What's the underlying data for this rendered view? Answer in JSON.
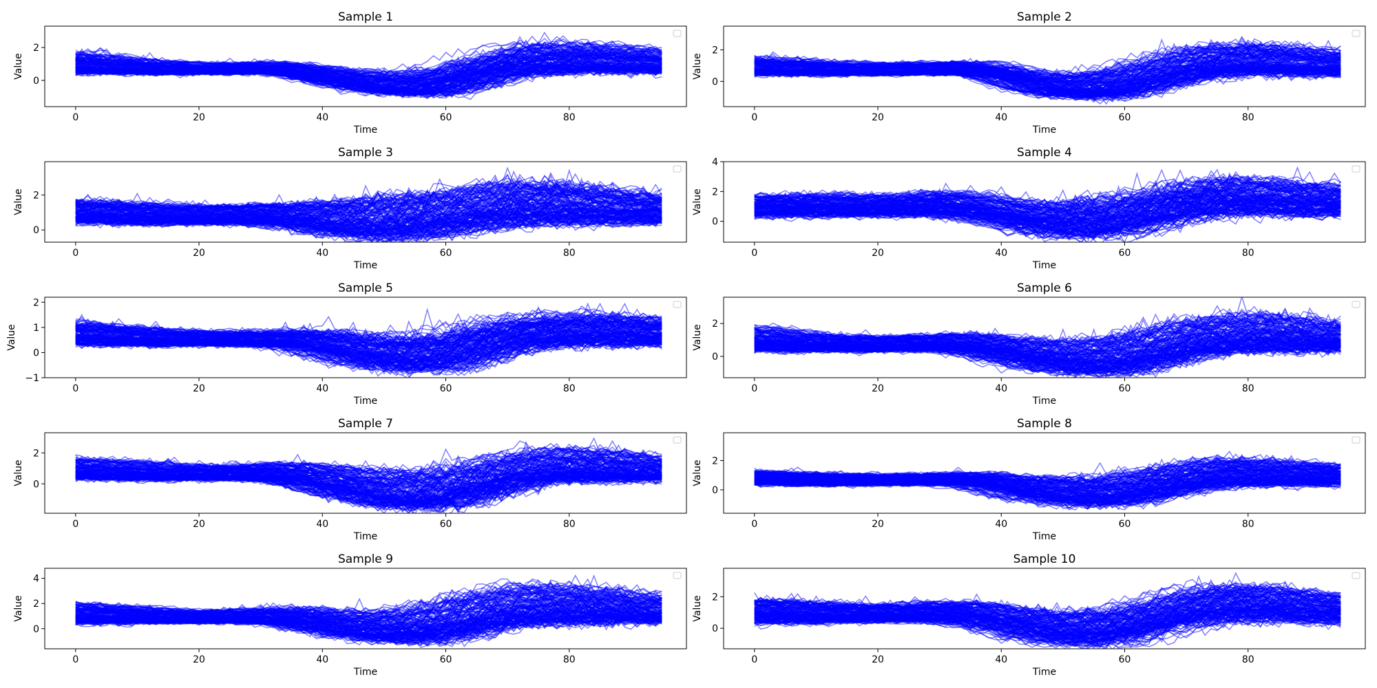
{
  "chart_data": [
    {
      "type": "line",
      "title": "Sample 1",
      "xlabel": "Time",
      "ylabel": "Value",
      "xlim": [
        -5,
        99
      ],
      "ylim": [
        -1.6,
        3.3
      ],
      "xticks": [
        0,
        20,
        40,
        60,
        80
      ],
      "yticks": [
        0,
        2
      ],
      "legend": "top-right",
      "grid": false,
      "series_color": "#0000ff",
      "approx_series_count": 150,
      "x_points": 96,
      "profile": {
        "x": [
          0,
          10,
          20,
          30,
          35,
          40,
          45,
          50,
          55,
          60,
          65,
          70,
          75,
          80,
          85,
          90,
          95
        ],
        "low": [
          0.5,
          0.4,
          0.4,
          0.45,
          0.3,
          -0.1,
          -0.5,
          -0.8,
          -0.9,
          -0.7,
          -0.2,
          0.3,
          0.5,
          0.55,
          0.55,
          0.55,
          0.5
        ],
        "high": [
          2.0,
          1.5,
          1.2,
          1.3,
          1.2,
          1.0,
          0.9,
          0.8,
          1.0,
          1.4,
          2.0,
          2.6,
          2.8,
          2.7,
          2.6,
          2.4,
          2.1
        ]
      }
    },
    {
      "type": "line",
      "title": "Sample 2",
      "xlabel": "Time",
      "ylabel": "Value",
      "xlim": [
        -5,
        99
      ],
      "ylim": [
        -1.6,
        3.5
      ],
      "xticks": [
        0,
        20,
        40,
        60,
        80
      ],
      "yticks": [
        0,
        2
      ],
      "legend": "top-right",
      "grid": false,
      "series_color": "#0000ff",
      "approx_series_count": 150,
      "x_points": 96,
      "profile": {
        "x": [
          0,
          10,
          20,
          30,
          35,
          40,
          45,
          50,
          55,
          60,
          65,
          70,
          75,
          80,
          85,
          90,
          95
        ],
        "low": [
          0.5,
          0.45,
          0.45,
          0.5,
          0.5,
          0.1,
          -0.6,
          -0.9,
          -1.0,
          -0.8,
          -0.3,
          0.2,
          0.5,
          0.6,
          0.55,
          0.5,
          0.5
        ],
        "high": [
          1.8,
          1.5,
          1.3,
          1.4,
          1.5,
          1.2,
          0.9,
          0.8,
          1.0,
          1.4,
          2.0,
          2.5,
          2.8,
          2.9,
          2.7,
          2.5,
          2.2
        ]
      }
    },
    {
      "type": "line",
      "title": "Sample 3",
      "xlabel": "Time",
      "ylabel": "Value",
      "xlim": [
        -5,
        99
      ],
      "ylim": [
        -0.7,
        3.9
      ],
      "xticks": [
        0,
        20,
        40,
        60,
        80
      ],
      "yticks": [
        0,
        2
      ],
      "legend": "top-right",
      "grid": false,
      "series_color": "#0000ff",
      "approx_series_count": 150,
      "x_points": 96,
      "profile": {
        "x": [
          0,
          10,
          20,
          30,
          35,
          40,
          45,
          50,
          55,
          60,
          65,
          70,
          75,
          80,
          85,
          90,
          95
        ],
        "low": [
          0.5,
          0.4,
          0.4,
          0.4,
          0.2,
          -0.1,
          -0.3,
          -0.4,
          -0.3,
          -0.1,
          0.2,
          0.4,
          0.5,
          0.5,
          0.5,
          0.5,
          0.5
        ],
        "high": [
          2.0,
          1.8,
          1.6,
          1.7,
          1.8,
          2.0,
          2.2,
          2.4,
          2.5,
          2.7,
          3.0,
          3.3,
          3.3,
          3.1,
          2.8,
          2.6,
          2.3
        ]
      }
    },
    {
      "type": "line",
      "title": "Sample 4",
      "xlabel": "Time",
      "ylabel": "Value",
      "xlim": [
        -5,
        99
      ],
      "ylim": [
        -1.4,
        4.0
      ],
      "xticks": [
        0,
        20,
        40,
        60,
        80
      ],
      "yticks": [
        0,
        2,
        4
      ],
      "legend": "top-right",
      "grid": false,
      "series_color": "#0000ff",
      "approx_series_count": 150,
      "x_points": 96,
      "profile": {
        "x": [
          0,
          10,
          20,
          30,
          35,
          40,
          45,
          50,
          55,
          60,
          65,
          70,
          75,
          80,
          85,
          90,
          95
        ],
        "low": [
          0.4,
          0.4,
          0.4,
          0.45,
          0.3,
          -0.1,
          -0.6,
          -0.9,
          -1.0,
          -0.8,
          -0.3,
          0.2,
          0.5,
          0.6,
          0.55,
          0.5,
          0.45
        ],
        "high": [
          2.0,
          2.2,
          2.0,
          2.4,
          2.2,
          1.8,
          1.6,
          1.8,
          2.2,
          2.4,
          2.8,
          3.2,
          3.5,
          3.4,
          3.2,
          3.0,
          2.8
        ]
      }
    },
    {
      "type": "line",
      "title": "Sample 5",
      "xlabel": "Time",
      "ylabel": "Value",
      "xlim": [
        -5,
        99
      ],
      "ylim": [
        -1.0,
        2.2
      ],
      "xticks": [
        0,
        20,
        40,
        60,
        80
      ],
      "yticks": [
        -1,
        0,
        1,
        2
      ],
      "legend": "top-right",
      "grid": false,
      "series_color": "#0000ff",
      "approx_series_count": 150,
      "x_points": 96,
      "profile": {
        "x": [
          0,
          10,
          20,
          30,
          35,
          40,
          45,
          50,
          55,
          60,
          65,
          70,
          75,
          80,
          85,
          90,
          95
        ],
        "low": [
          0.35,
          0.3,
          0.3,
          0.3,
          0.2,
          -0.1,
          -0.4,
          -0.6,
          -0.7,
          -0.6,
          -0.3,
          0.1,
          0.3,
          0.35,
          0.35,
          0.35,
          0.35
        ],
        "high": [
          1.5,
          1.2,
          1.0,
          1.0,
          1.1,
          1.2,
          1.1,
          1.0,
          1.1,
          1.3,
          1.5,
          1.7,
          1.8,
          1.9,
          1.9,
          1.8,
          1.6
        ]
      }
    },
    {
      "type": "line",
      "title": "Sample 6",
      "xlabel": "Time",
      "ylabel": "Value",
      "xlim": [
        -5,
        99
      ],
      "ylim": [
        -1.3,
        3.6
      ],
      "xticks": [
        0,
        20,
        40,
        60,
        80
      ],
      "yticks": [
        0,
        2
      ],
      "legend": "top-right",
      "grid": false,
      "series_color": "#0000ff",
      "approx_series_count": 150,
      "x_points": 96,
      "profile": {
        "x": [
          0,
          10,
          20,
          30,
          35,
          40,
          45,
          50,
          55,
          60,
          65,
          70,
          75,
          80,
          85,
          90,
          95
        ],
        "low": [
          0.4,
          0.35,
          0.35,
          0.4,
          0.2,
          -0.2,
          -0.6,
          -0.9,
          -1.0,
          -0.9,
          -0.5,
          0.0,
          0.3,
          0.4,
          0.4,
          0.4,
          0.4
        ],
        "high": [
          2.2,
          1.6,
          1.4,
          1.6,
          1.7,
          1.6,
          1.4,
          1.4,
          1.6,
          1.9,
          2.3,
          2.7,
          3.0,
          3.2,
          3.0,
          2.8,
          2.3
        ]
      }
    },
    {
      "type": "line",
      "title": "Sample 7",
      "xlabel": "Time",
      "ylabel": "Value",
      "xlim": [
        -5,
        99
      ],
      "ylim": [
        -1.9,
        3.3
      ],
      "xticks": [
        0,
        20,
        40,
        60,
        80
      ],
      "yticks": [
        0,
        2
      ],
      "legend": "top-right",
      "grid": false,
      "series_color": "#0000ff",
      "approx_series_count": 150,
      "x_points": 96,
      "profile": {
        "x": [
          0,
          10,
          20,
          30,
          35,
          40,
          45,
          50,
          55,
          60,
          65,
          70,
          75,
          80,
          85,
          90,
          95
        ],
        "low": [
          0.4,
          0.3,
          0.3,
          0.3,
          0.1,
          -0.4,
          -0.9,
          -1.3,
          -1.5,
          -1.4,
          -0.9,
          -0.3,
          0.2,
          0.3,
          0.3,
          0.3,
          0.3
        ],
        "high": [
          2.0,
          1.7,
          1.4,
          1.6,
          1.7,
          1.6,
          1.5,
          1.4,
          1.5,
          1.8,
          2.2,
          2.6,
          2.9,
          2.9,
          2.7,
          2.4,
          2.0
        ]
      }
    },
    {
      "type": "line",
      "title": "Sample 8",
      "xlabel": "Time",
      "ylabel": "Value",
      "xlim": [
        -5,
        99
      ],
      "ylim": [
        -1.6,
        3.9
      ],
      "xticks": [
        0,
        20,
        40,
        60,
        80
      ],
      "yticks": [
        0,
        2
      ],
      "legend": "top-right",
      "grid": false,
      "series_color": "#0000ff",
      "approx_series_count": 150,
      "x_points": 96,
      "profile": {
        "x": [
          0,
          10,
          20,
          30,
          35,
          40,
          45,
          50,
          55,
          60,
          65,
          70,
          75,
          80,
          85,
          90,
          95
        ],
        "low": [
          0.4,
          0.35,
          0.35,
          0.4,
          0.3,
          -0.2,
          -0.6,
          -0.9,
          -1.0,
          -0.9,
          -0.5,
          0.0,
          0.3,
          0.4,
          0.4,
          0.4,
          0.4
        ],
        "high": [
          1.5,
          1.3,
          1.2,
          1.3,
          1.4,
          1.3,
          1.2,
          1.2,
          1.3,
          1.5,
          1.9,
          2.3,
          2.6,
          2.5,
          2.3,
          2.1,
          2.0
        ]
      }
    },
    {
      "type": "line",
      "title": "Sample 9",
      "xlabel": "Time",
      "ylabel": "Value",
      "xlim": [
        -5,
        99
      ],
      "ylim": [
        -1.6,
        4.8
      ],
      "xticks": [
        0,
        20,
        40,
        60,
        80
      ],
      "yticks": [
        0,
        2,
        4
      ],
      "legend": "top-right",
      "grid": false,
      "series_color": "#0000ff",
      "approx_series_count": 150,
      "x_points": 96,
      "profile": {
        "x": [
          0,
          10,
          20,
          30,
          35,
          40,
          45,
          50,
          55,
          60,
          65,
          70,
          75,
          80,
          85,
          90,
          95
        ],
        "low": [
          0.5,
          0.5,
          0.5,
          0.5,
          0.3,
          -0.2,
          -0.6,
          -0.9,
          -1.0,
          -0.8,
          -0.3,
          0.3,
          0.5,
          0.6,
          0.6,
          0.6,
          0.6
        ],
        "high": [
          2.4,
          2.0,
          1.6,
          1.8,
          2.0,
          2.0,
          1.8,
          1.8,
          2.2,
          2.8,
          3.5,
          4.0,
          4.3,
          4.0,
          3.8,
          3.5,
          3.0
        ]
      }
    },
    {
      "type": "line",
      "title": "Sample 10",
      "xlabel": "Time",
      "ylabel": "Value",
      "xlim": [
        -5,
        99
      ],
      "ylim": [
        -1.3,
        3.8
      ],
      "xticks": [
        0,
        20,
        40,
        60,
        80
      ],
      "yticks": [
        0,
        2
      ],
      "legend": "top-right",
      "grid": false,
      "series_color": "#0000ff",
      "approx_series_count": 150,
      "x_points": 96,
      "profile": {
        "x": [
          0,
          10,
          20,
          30,
          35,
          40,
          45,
          50,
          55,
          60,
          65,
          70,
          75,
          80,
          85,
          90,
          95
        ],
        "low": [
          0.4,
          0.4,
          0.45,
          0.5,
          0.3,
          -0.1,
          -0.6,
          -0.9,
          -1.0,
          -0.8,
          -0.3,
          0.2,
          0.5,
          0.6,
          0.6,
          0.5,
          0.4
        ],
        "high": [
          2.2,
          1.9,
          1.7,
          1.9,
          2.0,
          1.7,
          1.5,
          1.4,
          1.5,
          1.8,
          2.4,
          2.9,
          3.2,
          3.2,
          3.0,
          2.7,
          2.4
        ]
      }
    }
  ]
}
